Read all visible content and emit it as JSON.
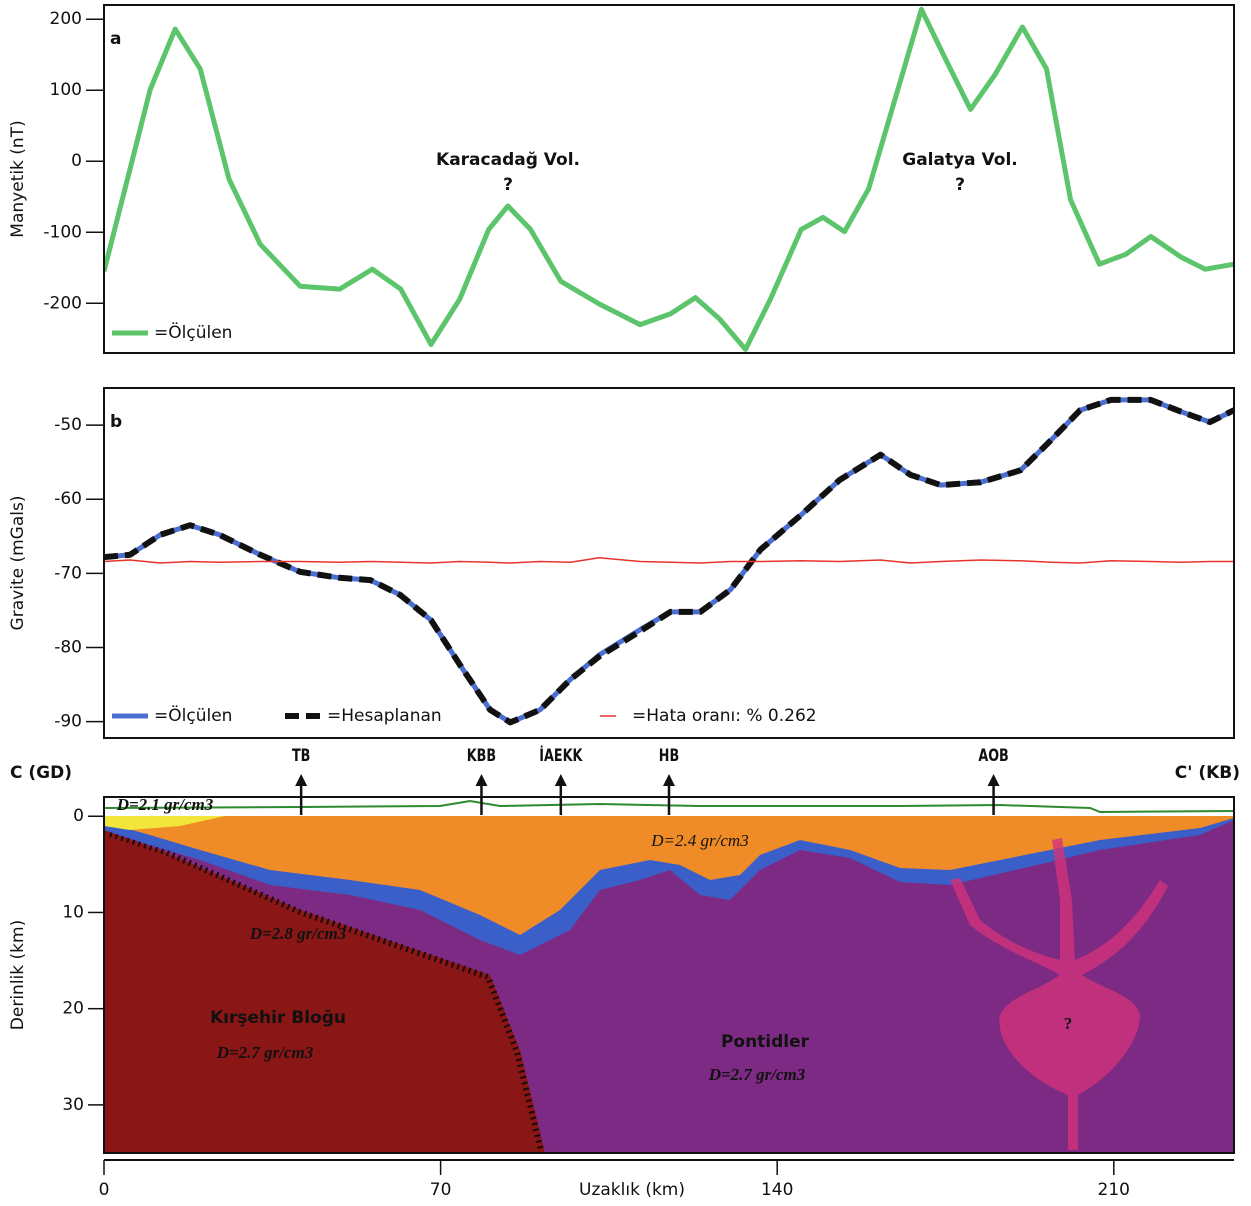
{
  "chart_data": [
    {
      "type": "line",
      "panel_label": "a",
      "ylabel": "Manyetik (nT)",
      "xlim": [
        0,
        235
      ],
      "ylim": [
        -270,
        220
      ],
      "yticks": [
        200,
        100,
        0,
        -100,
        -200
      ],
      "annotations": [
        "Karacadağ Vol.",
        "?",
        "Galatya Vol.",
        "?"
      ],
      "x": [
        0,
        5.4,
        9.6,
        14.8,
        20,
        26,
        32.5,
        40.8,
        49,
        55.8,
        61.7,
        68,
        74,
        80,
        84,
        88.7,
        95,
        103,
        111.5,
        117.8,
        123,
        128,
        133.4,
        138.6,
        145,
        149.5,
        154,
        159,
        165.7,
        170,
        175,
        180.2,
        185.4,
        191,
        196,
        201,
        207,
        212.5,
        217.7,
        224,
        229,
        235
      ],
      "series": [
        {
          "name": "=Ölçülen",
          "color": "#5cc46a",
          "values": [
            -155,
            -11,
            101,
            186,
            130,
            -25,
            -117,
            -176,
            -180,
            -152,
            -180,
            -258,
            -194,
            -96,
            -63,
            -96,
            -169,
            -201,
            -230,
            -215,
            -192,
            -222,
            -265,
            -194,
            -96,
            -79,
            -99,
            -39,
            115,
            214,
            144,
            73,
            123,
            189,
            130,
            -54,
            -145,
            -131,
            -106,
            -135,
            -152,
            -145
          ]
        }
      ]
    },
    {
      "type": "line",
      "panel_label": "b",
      "ylabel": "Gravite (mGals)",
      "xlim": [
        0,
        235
      ],
      "ylim": [
        -92.2,
        -45
      ],
      "yticks": [
        -50,
        -60,
        -70,
        -80,
        -90
      ],
      "x": [
        0,
        5.4,
        11.7,
        17.9,
        24,
        32.5,
        40.8,
        49,
        55.4,
        61.6,
        68,
        74,
        80.3,
        84.5,
        90.7,
        97,
        103,
        111.5,
        117.8,
        124,
        130.3,
        136.5,
        145,
        153,
        161.5,
        167.7,
        174,
        182.3,
        190.6,
        197,
        203,
        209.4,
        217.7,
        224,
        230,
        235
      ],
      "series": [
        {
          "name": "=Ölçülen",
          "color": "#4a6fd0",
          "style": "solid",
          "values": [
            -67.8,
            -67.5,
            -64.8,
            -63.5,
            -64.8,
            -67.5,
            -69.8,
            -70.6,
            -70.9,
            -72.9,
            -76.3,
            -82.3,
            -88.4,
            -90.1,
            -88.4,
            -84.3,
            -81,
            -77.6,
            -75.2,
            -75.2,
            -72.2,
            -66.8,
            -62.1,
            -57.4,
            -54,
            -56.7,
            -58.1,
            -57.7,
            -56.1,
            -52,
            -48,
            -46.6,
            -46.6,
            -48.2,
            -49.6,
            -48
          ]
        },
        {
          "name": "=Hesaplanan",
          "color": "#111111",
          "style": "dashed",
          "values": [
            -67.8,
            -67.5,
            -64.8,
            -63.5,
            -64.8,
            -67.5,
            -69.8,
            -70.6,
            -70.9,
            -72.9,
            -76.3,
            -82.3,
            -88.4,
            -90.1,
            -88.4,
            -84.3,
            -81.2,
            -77.8,
            -75.2,
            -75.2,
            -72.2,
            -66.8,
            -62.1,
            -57.4,
            -54,
            -56.7,
            -58.1,
            -57.7,
            -56.1,
            -52,
            -48,
            -46.6,
            -46.6,
            -48.2,
            -49.6,
            -48
          ]
        },
        {
          "name": "=Hata oranı: % 0.262",
          "color": "#e8332a",
          "style": "thin",
          "values": [
            -68.4,
            -68.2,
            -68.6,
            -68.4,
            -68.5,
            -68.4,
            -68.4,
            -68.5,
            -68.4,
            -68.5,
            -68.6,
            -68.4,
            -68.5,
            -68.6,
            -68.4,
            -68.5,
            -67.9,
            -68.4,
            -68.5,
            -68.6,
            -68.4,
            -68.4,
            -68.3,
            -68.4,
            -68.2,
            -68.6,
            -68.4,
            -68.2,
            -68.3,
            -68.5,
            -68.6,
            -68.3,
            -68.4,
            -68.5,
            -68.4,
            -68.4
          ]
        }
      ]
    },
    {
      "type": "cross-section",
      "left_label": "C (GD)",
      "right_label": "C' (KB)",
      "ylabel": "Derinlik (km)",
      "xlabel": "Uzaklık (km)",
      "xlim": [
        0,
        235
      ],
      "ylim": [
        35,
        -2
      ],
      "xticks": [
        0,
        70,
        140,
        210
      ],
      "yticks": [
        0,
        10,
        20,
        30
      ],
      "stations": [
        {
          "label": "TB",
          "x": 41
        },
        {
          "label": "KBB",
          "x": 78.5
        },
        {
          "label": "İAEKK",
          "x": 95
        },
        {
          "label": "HB",
          "x": 117.5
        },
        {
          "label": "AOB",
          "x": 185
        }
      ],
      "texts": [
        "D=2.1 gr/cm3",
        "D=2.4 gr/cm3",
        "D=2.8 gr/cm3",
        "Kırşehir Bloğu",
        "D=2.7 gr/cm3",
        "Pontidler",
        "D=2.7 gr/cm3",
        "?"
      ]
    }
  ]
}
